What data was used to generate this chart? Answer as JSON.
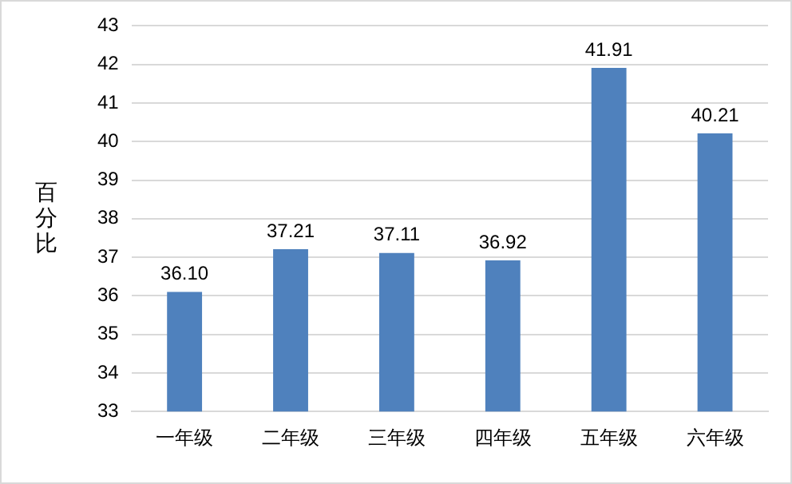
{
  "chart_data": {
    "type": "bar",
    "ylabel": "百分比",
    "categories": [
      "一年级",
      "二年级",
      "三年级",
      "四年级",
      "五年级",
      "六年级"
    ],
    "values": [
      36.1,
      37.21,
      37.11,
      36.92,
      41.91,
      40.21
    ],
    "value_labels": [
      "36.10",
      "37.21",
      "37.11",
      "36.92",
      "41.91",
      "40.21"
    ],
    "color": "#4f81bd",
    "ylim": [
      33,
      43
    ],
    "yticks": [
      33,
      34,
      35,
      36,
      37,
      38,
      39,
      40,
      41,
      42,
      43
    ],
    "grid": "y",
    "legend": false
  }
}
